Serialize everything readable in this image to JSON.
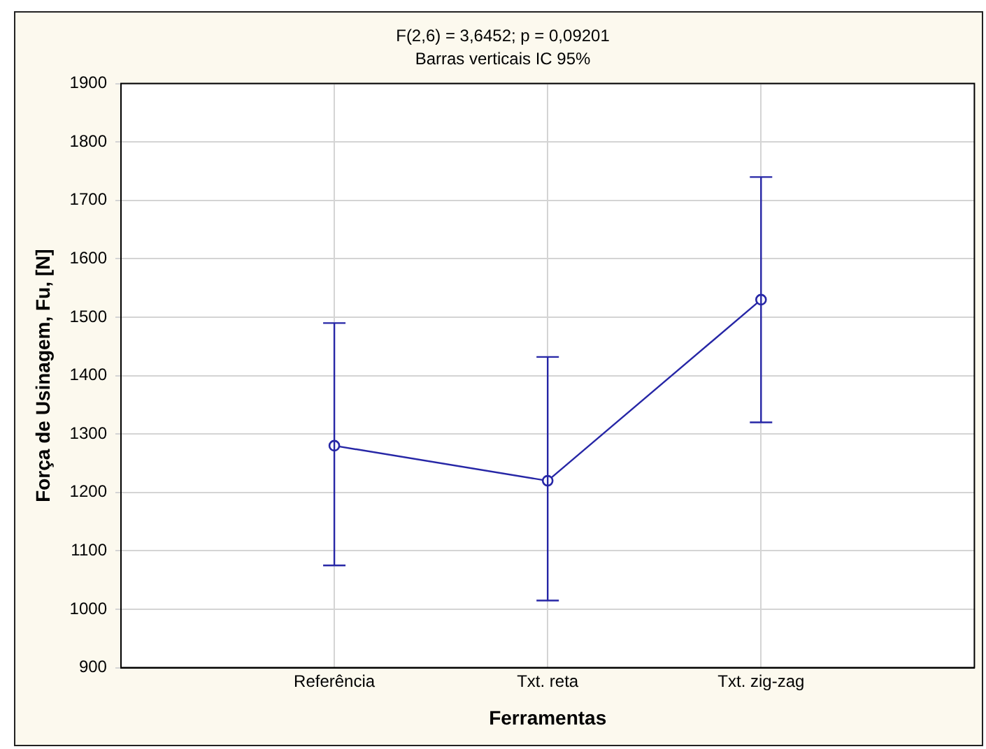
{
  "chart_data": {
    "type": "line",
    "title": "F(2,6) = 3,6452; p = 0,09201",
    "subtitle": "Barras verticais IC 95%",
    "xlabel": "Ferramentas",
    "ylabel": "Força de Usinagem, Fu, [N]",
    "categories": [
      "Referência",
      "Txt. reta",
      "Txt. zig-zag"
    ],
    "series": [
      {
        "color": "#2626a6",
        "values": [
          1280,
          1220,
          1530
        ],
        "errors": [
          [
            1075,
            1490
          ],
          [
            1015,
            1432
          ],
          [
            1320,
            1740
          ]
        ]
      }
    ],
    "ylim": [
      900,
      1900
    ],
    "yticks": [
      900,
      1000,
      1100,
      1200,
      1300,
      1400,
      1500,
      1600,
      1700,
      1800,
      1900
    ],
    "grid": true,
    "legend": false,
    "marker": "circle",
    "line_style": "solid"
  }
}
